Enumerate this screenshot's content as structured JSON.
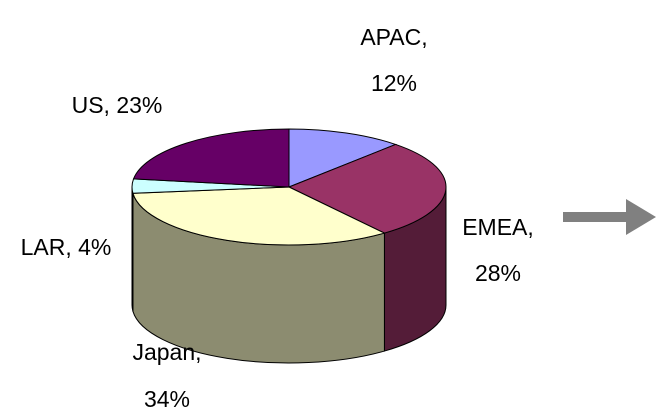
{
  "chart_data": {
    "type": "pie",
    "style": "3d",
    "title": "",
    "legend": "none",
    "categories": [
      "APAC",
      "EMEA",
      "Japan",
      "LAR",
      "US"
    ],
    "values": [
      12,
      28,
      34,
      4,
      23
    ],
    "colors": [
      "#9999ff",
      "#993366",
      "#ffffcc",
      "#ccffff",
      "#660066"
    ],
    "data_labels": [
      [
        "APAC,",
        "12%"
      ],
      [
        "EMEA,",
        "28%"
      ],
      [
        "Japan,",
        "34%"
      ],
      [
        "LAR, 4%"
      ],
      [
        "US, 23%"
      ]
    ]
  },
  "annotations": {
    "arrow_color": "#808080"
  }
}
